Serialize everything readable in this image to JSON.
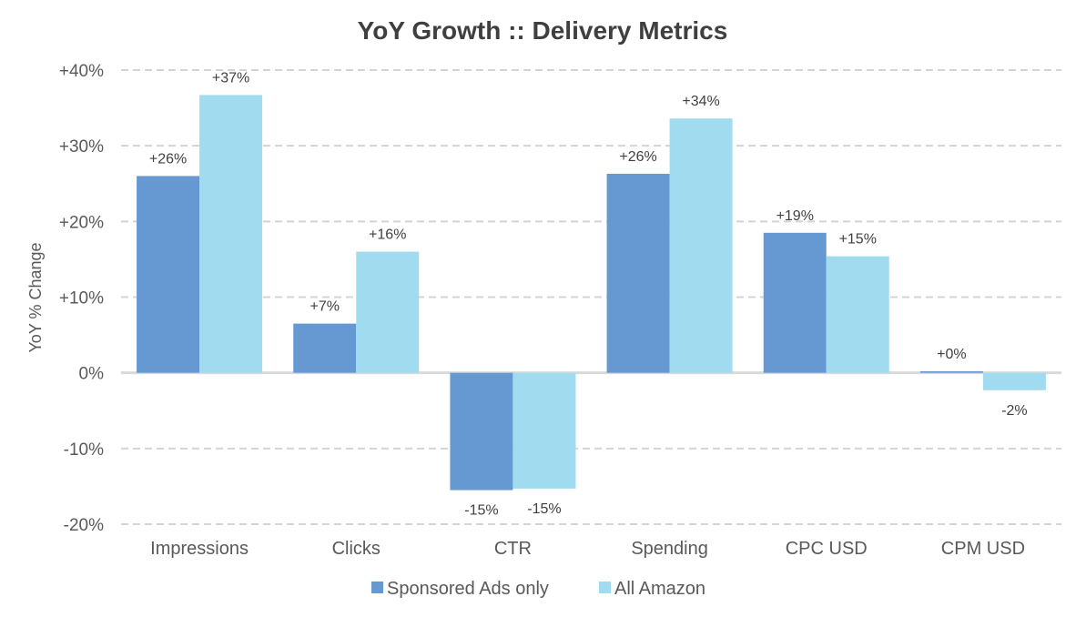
{
  "chart_data": {
    "type": "bar",
    "title": "YoY Growth :: Delivery Metrics",
    "ylabel": "YoY % Change",
    "xlabel": "",
    "categories": [
      "Impressions",
      "Clicks",
      "CTR",
      "Spending",
      "CPC USD",
      "CPM USD"
    ],
    "series": [
      {
        "name": "Sponsored Ads only",
        "color": "#6699D2",
        "values": [
          26,
          6.5,
          -15.5,
          26.3,
          18.5,
          0.2
        ],
        "labels": [
          "+26%",
          "+7%",
          "-15%",
          "+26%",
          "+19%",
          "+0%"
        ]
      },
      {
        "name": "All Amazon",
        "color": "#A1DBEF",
        "values": [
          36.7,
          16,
          -15.3,
          33.6,
          15.4,
          -2.3
        ],
        "labels": [
          "+37%",
          "+16%",
          "-15%",
          "+34%",
          "+15%",
          "-2%"
        ]
      }
    ],
    "ylim": [
      -20,
      40
    ],
    "yticks": [
      40,
      30,
      20,
      10,
      0,
      -10,
      -20
    ],
    "ytick_labels": [
      "+40%",
      "+30%",
      "+20%",
      "+10%",
      "0%",
      "-10%",
      "-20%"
    ],
    "grid": true,
    "legend_position": "bottom"
  }
}
